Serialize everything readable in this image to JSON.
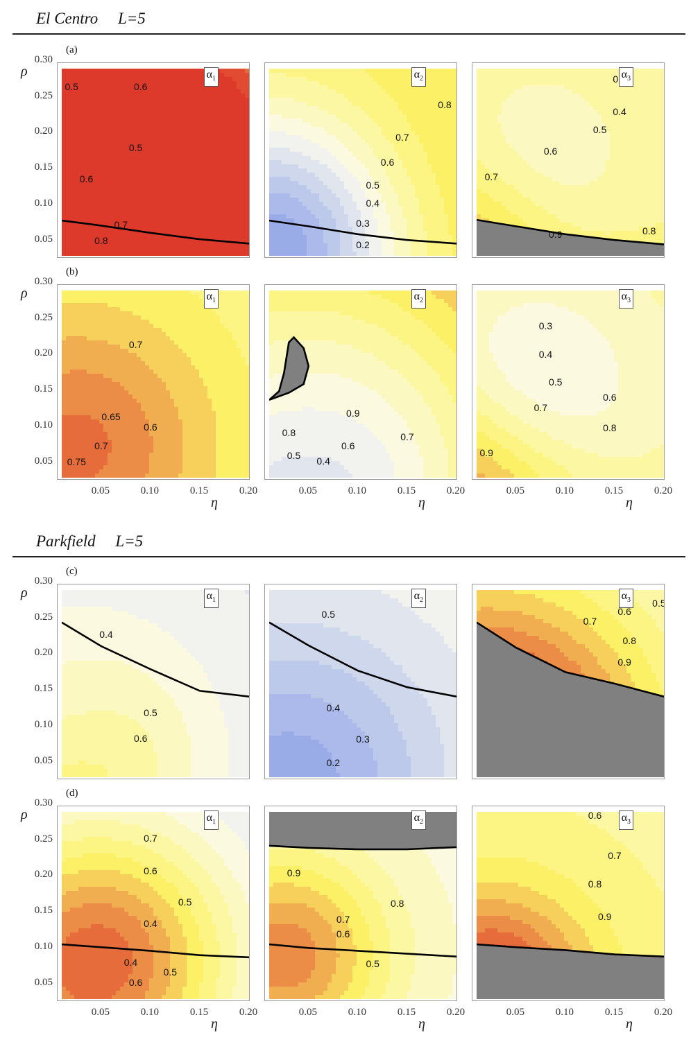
{
  "sections": [
    {
      "title": "El Centro     L=5",
      "rows": [
        "(a)",
        "(b)"
      ]
    },
    {
      "title": "Parkfield     L=5",
      "rows": [
        "(c)",
        "(d)"
      ]
    }
  ],
  "axis": {
    "y_label": "ρ",
    "x_label": "η",
    "y_ticks": [
      "0.30",
      "0.25",
      "0.20",
      "0.15",
      "0.10",
      "0.05"
    ],
    "x_ticks": [
      "0.05",
      "0.10",
      "0.15",
      "0.20"
    ]
  },
  "chart_data": {
    "type": "heatmap",
    "x_range": [
      0.01,
      0.2
    ],
    "y_range": [
      0.03,
      0.29
    ],
    "colormap": {
      "low": "#7e97e6",
      "mid": "#fbfaf0",
      "high": "#fdf467",
      "top": "#dd3a2c",
      "undefined": "#808080"
    },
    "panels": [
      {
        "row": "a",
        "coef": "α",
        "sub": "1",
        "base": 0.52,
        "b": [
          [
            0.46,
            0.6,
            0.6,
            0.88
          ],
          [
            0.9,
            0.15,
            0.3,
            0.32
          ],
          [
            0.78,
            0.04,
            0.1,
            0.55
          ]
        ],
        "bnd": [
          [
            0.01,
            0.079
          ],
          [
            0.05,
            0.072
          ],
          [
            0.1,
            0.062
          ],
          [
            0.15,
            0.053
          ],
          [
            0.2,
            0.047
          ]
        ],
        "undef": "none",
        "labels": [
          {
            "t": "0.5",
            "x": 0.02,
            "y": 0.265
          },
          {
            "t": "0.6",
            "x": 0.09,
            "y": 0.265
          },
          {
            "t": "0.5",
            "x": 0.085,
            "y": 0.18
          },
          {
            "t": "0.6",
            "x": 0.035,
            "y": 0.137
          },
          {
            "t": "0.7",
            "x": 0.07,
            "y": 0.073
          },
          {
            "t": "0.8",
            "x": 0.05,
            "y": 0.051
          }
        ]
      },
      {
        "row": "a",
        "coef": "α",
        "sub": "2",
        "base": 0.74,
        "b": [
          [
            0.1,
            0.6,
            0.2,
            0.5
          ],
          [
            0.0,
            0.8,
            0.16,
            0.16
          ],
          [
            -0.58,
            0.07,
            0.05,
            0.5
          ]
        ],
        "bnd": [
          [
            0.01,
            0.079
          ],
          [
            0.05,
            0.071
          ],
          [
            0.1,
            0.06
          ],
          [
            0.15,
            0.052
          ],
          [
            0.2,
            0.047
          ]
        ],
        "undef": "none",
        "labels": [
          {
            "t": "0.8",
            "x": 0.188,
            "y": 0.24
          },
          {
            "t": "0.7",
            "x": 0.145,
            "y": 0.195
          },
          {
            "t": "0.6",
            "x": 0.13,
            "y": 0.16
          },
          {
            "t": "0.5",
            "x": 0.115,
            "y": 0.128
          },
          {
            "t": "0.4",
            "x": 0.115,
            "y": 0.103
          },
          {
            "t": "0.3",
            "x": 0.105,
            "y": 0.075
          },
          {
            "t": "0.2",
            "x": 0.105,
            "y": 0.045
          }
        ]
      },
      {
        "row": "a",
        "coef": "α",
        "sub": "3",
        "base": 0.62,
        "b": [
          [
            -0.38,
            0.2,
            0.3,
            0.45
          ],
          [
            0.14,
            0.06,
            0.16,
            0.32
          ],
          [
            0.35,
            0.07,
            0.065,
            0.6
          ]
        ],
        "bnd": [
          [
            0.01,
            0.08
          ],
          [
            0.05,
            0.071
          ],
          [
            0.1,
            0.06
          ],
          [
            0.15,
            0.052
          ],
          [
            0.2,
            0.046
          ]
        ],
        "undef": "below",
        "labels": [
          {
            "t": "0.3",
            "x": 0.155,
            "y": 0.276
          },
          {
            "t": "0.4",
            "x": 0.155,
            "y": 0.23
          },
          {
            "t": "0.5",
            "x": 0.135,
            "y": 0.205
          },
          {
            "t": "0.6",
            "x": 0.085,
            "y": 0.175
          },
          {
            "t": "0.7",
            "x": 0.025,
            "y": 0.14
          },
          {
            "t": "0.9",
            "x": 0.09,
            "y": 0.06
          },
          {
            "t": "0.8",
            "x": 0.185,
            "y": 0.065
          }
        ]
      },
      {
        "row": "b",
        "coef": "α",
        "sub": "1",
        "base": 0.66,
        "b": [
          [
            0.08,
            0.02,
            0.18,
            0.75
          ],
          [
            0.12,
            0.14,
            0.25,
            0.48
          ],
          [
            -0.06,
            0.18,
            0.095,
            0.72
          ],
          [
            0.12,
            0.06,
            0.02,
            0.55
          ]
        ],
        "bnd": [],
        "undef": "none",
        "labels": [
          {
            "t": "0.7",
            "x": 0.085,
            "y": 0.215
          },
          {
            "t": "0.65",
            "x": 0.06,
            "y": 0.115
          },
          {
            "t": "0.6",
            "x": 0.1,
            "y": 0.1
          },
          {
            "t": "0.7",
            "x": 0.05,
            "y": 0.074
          },
          {
            "t": "0.75",
            "x": 0.025,
            "y": 0.052
          }
        ]
      },
      {
        "row": "b",
        "coef": "α",
        "sub": "2",
        "base": 0.9,
        "b": [
          [
            0.14,
            0.02,
            0.21,
            0.55
          ],
          [
            0.05,
            0.12,
            0.17,
            0.4
          ],
          [
            -0.64,
            0.11,
            0.02,
            0.75
          ]
        ],
        "bnd": [
          [
            0.01,
            0.138
          ],
          [
            0.02,
            0.15
          ],
          [
            0.025,
            0.175
          ],
          [
            0.03,
            0.218
          ],
          [
            0.035,
            0.225
          ],
          [
            0.045,
            0.21
          ],
          [
            0.05,
            0.185
          ],
          [
            0.045,
            0.16
          ],
          [
            0.03,
            0.148
          ],
          [
            0.01,
            0.138
          ]
        ],
        "undef": "region",
        "labels": [
          {
            "t": "0.9",
            "x": 0.095,
            "y": 0.12
          },
          {
            "t": "0.8",
            "x": 0.03,
            "y": 0.093
          },
          {
            "t": "0.7",
            "x": 0.15,
            "y": 0.087
          },
          {
            "t": "0.6",
            "x": 0.09,
            "y": 0.074
          },
          {
            "t": "0.5",
            "x": 0.035,
            "y": 0.061
          },
          {
            "t": "0.4",
            "x": 0.065,
            "y": 0.053
          }
        ]
      },
      {
        "row": "b",
        "coef": "α",
        "sub": "3",
        "base": 0.62,
        "b": [
          [
            -0.38,
            0.2,
            0.3,
            0.45
          ],
          [
            0.35,
            0.02,
            0.04,
            0.45
          ],
          [
            0.12,
            0.04,
            0.03,
            0.55
          ]
        ],
        "bnd": [],
        "undef": "none",
        "labels": [
          {
            "t": "0.3",
            "x": 0.08,
            "y": 0.241
          },
          {
            "t": "0.4",
            "x": 0.08,
            "y": 0.201
          },
          {
            "t": "0.5",
            "x": 0.09,
            "y": 0.163
          },
          {
            "t": "0.6",
            "x": 0.145,
            "y": 0.142
          },
          {
            "t": "0.7",
            "x": 0.075,
            "y": 0.127
          },
          {
            "t": "0.8",
            "x": 0.145,
            "y": 0.099
          },
          {
            "t": "0.9",
            "x": 0.02,
            "y": 0.065
          }
        ]
      },
      {
        "row": "c",
        "coef": "α",
        "sub": "1",
        "base": 0.44,
        "b": [
          [
            -0.1,
            0.02,
            0.26,
            0.3
          ],
          [
            0.1,
            0.14,
            0.24,
            0.5
          ],
          [
            0.2,
            0.02,
            0.03,
            0.45
          ]
        ],
        "bnd": [
          [
            0.01,
            0.245
          ],
          [
            0.05,
            0.212
          ],
          [
            0.1,
            0.18
          ],
          [
            0.15,
            0.15
          ],
          [
            0.2,
            0.142
          ]
        ],
        "undef": "none",
        "labels": [
          {
            "t": "0.4",
            "x": 0.055,
            "y": 0.228
          },
          {
            "t": "0.5",
            "x": 0.1,
            "y": 0.12
          },
          {
            "t": "0.6",
            "x": 0.09,
            "y": 0.084
          }
        ]
      },
      {
        "row": "c",
        "coef": "α",
        "sub": "2",
        "base": 0.49,
        "b": [
          [
            0.04,
            0.09,
            0.25,
            0.4
          ],
          [
            -0.3,
            0.1,
            0.03,
            0.55
          ]
        ],
        "bnd": [
          [
            0.01,
            0.245
          ],
          [
            0.05,
            0.213
          ],
          [
            0.1,
            0.178
          ],
          [
            0.15,
            0.155
          ],
          [
            0.2,
            0.142
          ]
        ],
        "undef": "none",
        "labels": [
          {
            "t": "0.5",
            "x": 0.07,
            "y": 0.256
          },
          {
            "t": "0.4",
            "x": 0.075,
            "y": 0.126
          },
          {
            "t": "0.3",
            "x": 0.105,
            "y": 0.083
          },
          {
            "t": "0.2",
            "x": 0.075,
            "y": 0.05
          }
        ]
      },
      {
        "row": "c",
        "coef": "α",
        "sub": "3",
        "base": 0.55,
        "b": [
          [
            0.45,
            0.04,
            0.14,
            0.6
          ],
          [
            0.1,
            0.1,
            0.06,
            0.7
          ]
        ],
        "bnd": [
          [
            0.01,
            0.245
          ],
          [
            0.05,
            0.21
          ],
          [
            0.1,
            0.176
          ],
          [
            0.15,
            0.16
          ],
          [
            0.2,
            0.142
          ]
        ],
        "undef": "below",
        "labels": [
          {
            "t": "0.5",
            "x": 0.195,
            "y": 0.272
          },
          {
            "t": "0.6",
            "x": 0.16,
            "y": 0.26
          },
          {
            "t": "0.7",
            "x": 0.125,
            "y": 0.247
          },
          {
            "t": "0.8",
            "x": 0.165,
            "y": 0.22
          },
          {
            "t": "0.9",
            "x": 0.16,
            "y": 0.19
          }
        ]
      },
      {
        "row": "d",
        "coef": "α",
        "sub": "1",
        "base": 0.42,
        "b": [
          [
            0.3,
            0.25,
            0.29,
            0.5
          ],
          [
            0.24,
            0.06,
            0.03,
            0.55
          ]
        ],
        "bnd": [
          [
            0.01,
            0.106
          ],
          [
            0.05,
            0.102
          ],
          [
            0.1,
            0.097
          ],
          [
            0.15,
            0.091
          ],
          [
            0.2,
            0.088
          ]
        ],
        "undef": "none",
        "labels": [
          {
            "t": "0.7",
            "x": 0.1,
            "y": 0.253
          },
          {
            "t": "0.6",
            "x": 0.1,
            "y": 0.208
          },
          {
            "t": "0.5",
            "x": 0.135,
            "y": 0.165
          },
          {
            "t": "0.4",
            "x": 0.1,
            "y": 0.135
          },
          {
            "t": "0.4",
            "x": 0.08,
            "y": 0.081
          },
          {
            "t": "0.5",
            "x": 0.12,
            "y": 0.068
          },
          {
            "t": "0.6",
            "x": 0.085,
            "y": 0.053
          }
        ]
      },
      {
        "row": "d",
        "coef": "α",
        "sub": "2",
        "base": 0.53,
        "b": [
          [
            0.4,
            0.08,
            0.22,
            0.4
          ],
          [
            -0.05,
            0.08,
            0.03,
            0.5
          ]
        ],
        "bnd": [
          [
            0.01,
            0.106
          ],
          [
            0.05,
            0.101
          ],
          [
            0.1,
            0.097
          ],
          [
            0.15,
            0.093
          ],
          [
            0.2,
            0.089
          ]
        ],
        "undef": "above",
        "bnd2": [
          [
            0.01,
            0.243
          ],
          [
            0.05,
            0.24
          ],
          [
            0.1,
            0.238
          ],
          [
            0.15,
            0.238
          ],
          [
            0.2,
            0.241
          ]
        ],
        "labels": [
          {
            "t": "0.9",
            "x": 0.035,
            "y": 0.205
          },
          {
            "t": "0.8",
            "x": 0.14,
            "y": 0.163
          },
          {
            "t": "0.7",
            "x": 0.085,
            "y": 0.141
          },
          {
            "t": "0.6",
            "x": 0.085,
            "y": 0.121
          },
          {
            "t": "0.5",
            "x": 0.115,
            "y": 0.079
          }
        ]
      },
      {
        "row": "d",
        "coef": "α",
        "sub": "3",
        "base": 0.64,
        "b": [
          [
            0.3,
            0.09,
            0.04,
            0.4
          ],
          [
            0.09,
            0.05,
            0.08,
            0.25
          ]
        ],
        "bnd": [
          [
            0.01,
            0.106
          ],
          [
            0.05,
            0.102
          ],
          [
            0.1,
            0.098
          ],
          [
            0.15,
            0.092
          ],
          [
            0.2,
            0.089
          ]
        ],
        "undef": "below",
        "labels": [
          {
            "t": "0.6",
            "x": 0.13,
            "y": 0.285
          },
          {
            "t": "0.7",
            "x": 0.15,
            "y": 0.229
          },
          {
            "t": "0.8",
            "x": 0.13,
            "y": 0.19
          },
          {
            "t": "0.9",
            "x": 0.14,
            "y": 0.145
          }
        ]
      }
    ]
  }
}
